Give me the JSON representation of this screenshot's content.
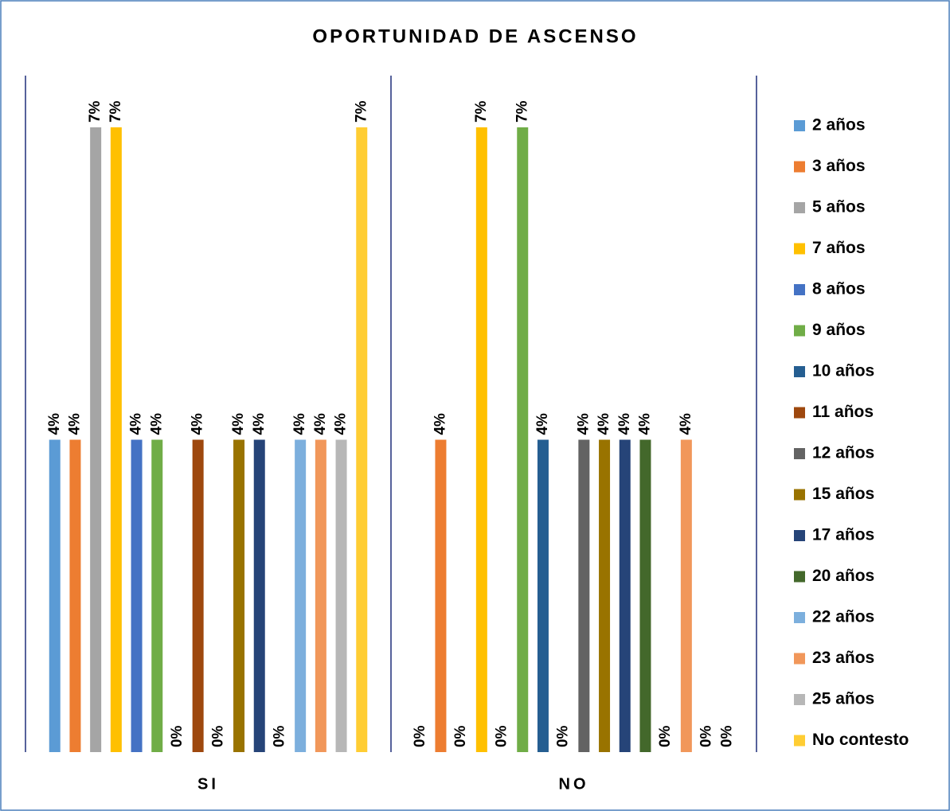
{
  "chart_data": {
    "type": "bar",
    "title": "OPORTUNIDAD DE ASCENSO",
    "categories": [
      "SI",
      "NO"
    ],
    "series": [
      {
        "name": "2 años",
        "color": "#5b9bd5",
        "values": [
          3.7,
          0
        ],
        "value_labels": [
          "4%",
          "0%"
        ]
      },
      {
        "name": "3 años",
        "color": "#ed7d31",
        "values": [
          3.7,
          3.7
        ],
        "value_labels": [
          "4%",
          "4%"
        ]
      },
      {
        "name": "5 años",
        "color": "#a5a5a5",
        "values": [
          7.4,
          0
        ],
        "value_labels": [
          "7%",
          "0%"
        ]
      },
      {
        "name": "7 años",
        "color": "#ffc000",
        "values": [
          7.4,
          7.4
        ],
        "value_labels": [
          "7%",
          "7%"
        ]
      },
      {
        "name": "8 años",
        "color": "#4472c4",
        "values": [
          3.7,
          0
        ],
        "value_labels": [
          "4%",
          "0%"
        ]
      },
      {
        "name": "9 años",
        "color": "#70ad47",
        "values": [
          3.7,
          7.4
        ],
        "value_labels": [
          "4%",
          "7%"
        ]
      },
      {
        "name": "10 años",
        "color": "#255e91",
        "values": [
          0,
          3.7
        ],
        "value_labels": [
          "0%",
          "4%"
        ]
      },
      {
        "name": "11 años",
        "color": "#9e480e",
        "values": [
          3.7,
          0
        ],
        "value_labels": [
          "4%",
          "0%"
        ]
      },
      {
        "name": "12 años",
        "color": "#636363",
        "values": [
          0,
          3.7
        ],
        "value_labels": [
          "0%",
          "4%"
        ]
      },
      {
        "name": "15 años",
        "color": "#997300",
        "values": [
          3.7,
          3.7
        ],
        "value_labels": [
          "4%",
          "4%"
        ]
      },
      {
        "name": "17 años",
        "color": "#264478",
        "values": [
          3.7,
          3.7
        ],
        "value_labels": [
          "4%",
          "4%"
        ]
      },
      {
        "name": "20 años",
        "color": "#43682b",
        "values": [
          0,
          3.7
        ],
        "value_labels": [
          "0%",
          "4%"
        ]
      },
      {
        "name": "22 años",
        "color": "#7cafdd",
        "values": [
          3.7,
          0
        ],
        "value_labels": [
          "4%",
          "0%"
        ]
      },
      {
        "name": "23 años",
        "color": "#f1975a",
        "values": [
          3.7,
          3.7
        ],
        "value_labels": [
          "4%",
          "4%"
        ]
      },
      {
        "name": "25 años",
        "color": "#b7b7b7",
        "values": [
          3.7,
          0
        ],
        "value_labels": [
          "4%",
          "0%"
        ]
      },
      {
        "name": "No contesto",
        "color": "#ffcd33",
        "values": [
          7.4,
          0
        ],
        "value_labels": [
          "7%",
          "0%"
        ]
      }
    ]
  }
}
